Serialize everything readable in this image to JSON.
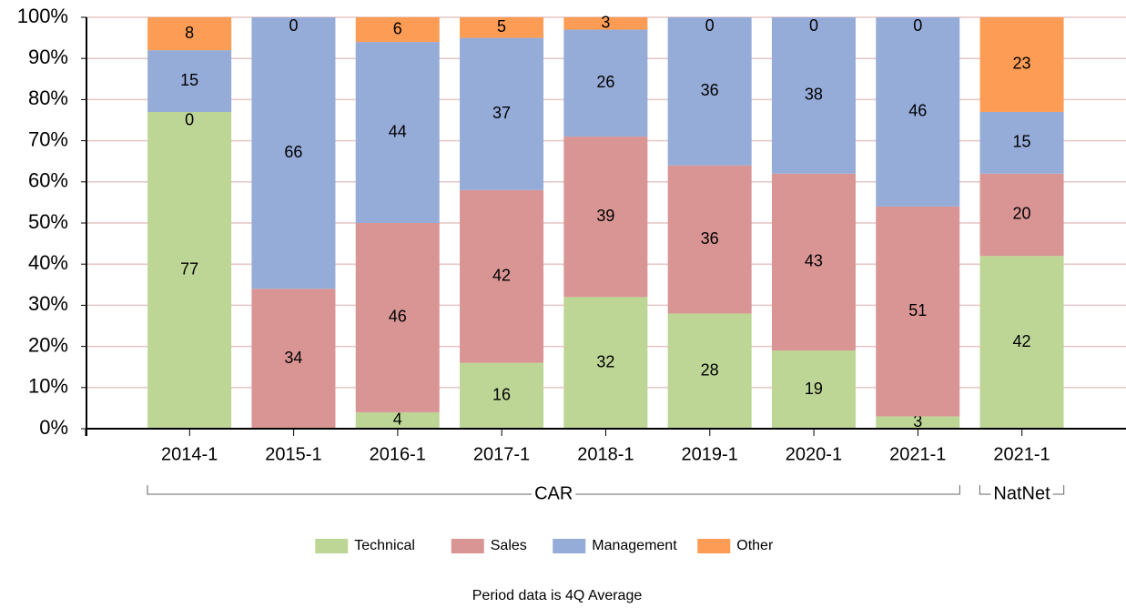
{
  "chart_data": {
    "type": "stacked-bar-100",
    "groups": [
      {
        "name": "CAR",
        "categories": [
          "2014-1",
          "2015-1",
          "2016-1",
          "2017-1",
          "2018-1",
          "2019-1",
          "2020-1",
          "2021-1"
        ]
      },
      {
        "name": "NatNet",
        "categories": [
          "2021-1"
        ]
      }
    ],
    "series": [
      {
        "name": "Technical",
        "color": "#bdd595",
        "values": [
          77,
          0,
          4,
          16,
          32,
          28,
          19,
          3,
          42
        ]
      },
      {
        "name": "Sales",
        "color": "#d99594",
        "values": [
          0,
          34,
          46,
          42,
          39,
          36,
          43,
          51,
          20
        ]
      },
      {
        "name": "Management",
        "color": "#95abd8",
        "values": [
          15,
          66,
          44,
          37,
          26,
          36,
          38,
          46,
          15
        ]
      },
      {
        "name": "Other",
        "color": "#fd9c54",
        "values": [
          8,
          0,
          6,
          5,
          3,
          0,
          0,
          0,
          23
        ]
      }
    ],
    "ylim": [
      0,
      100
    ],
    "yticks": [
      {
        "value": 0,
        "label": "0%"
      },
      {
        "value": 10,
        "label": "10%"
      },
      {
        "value": 20,
        "label": "20%"
      },
      {
        "value": 30,
        "label": "30%"
      },
      {
        "value": 40,
        "label": "40%"
      },
      {
        "value": 50,
        "label": "50%"
      },
      {
        "value": 60,
        "label": "60%"
      },
      {
        "value": 70,
        "label": "70%"
      },
      {
        "value": 80,
        "label": "80%"
      },
      {
        "value": 90,
        "label": "90%"
      },
      {
        "value": 100,
        "label": "100%"
      }
    ],
    "grid": true,
    "footnote": "Period data is 4Q Average"
  }
}
